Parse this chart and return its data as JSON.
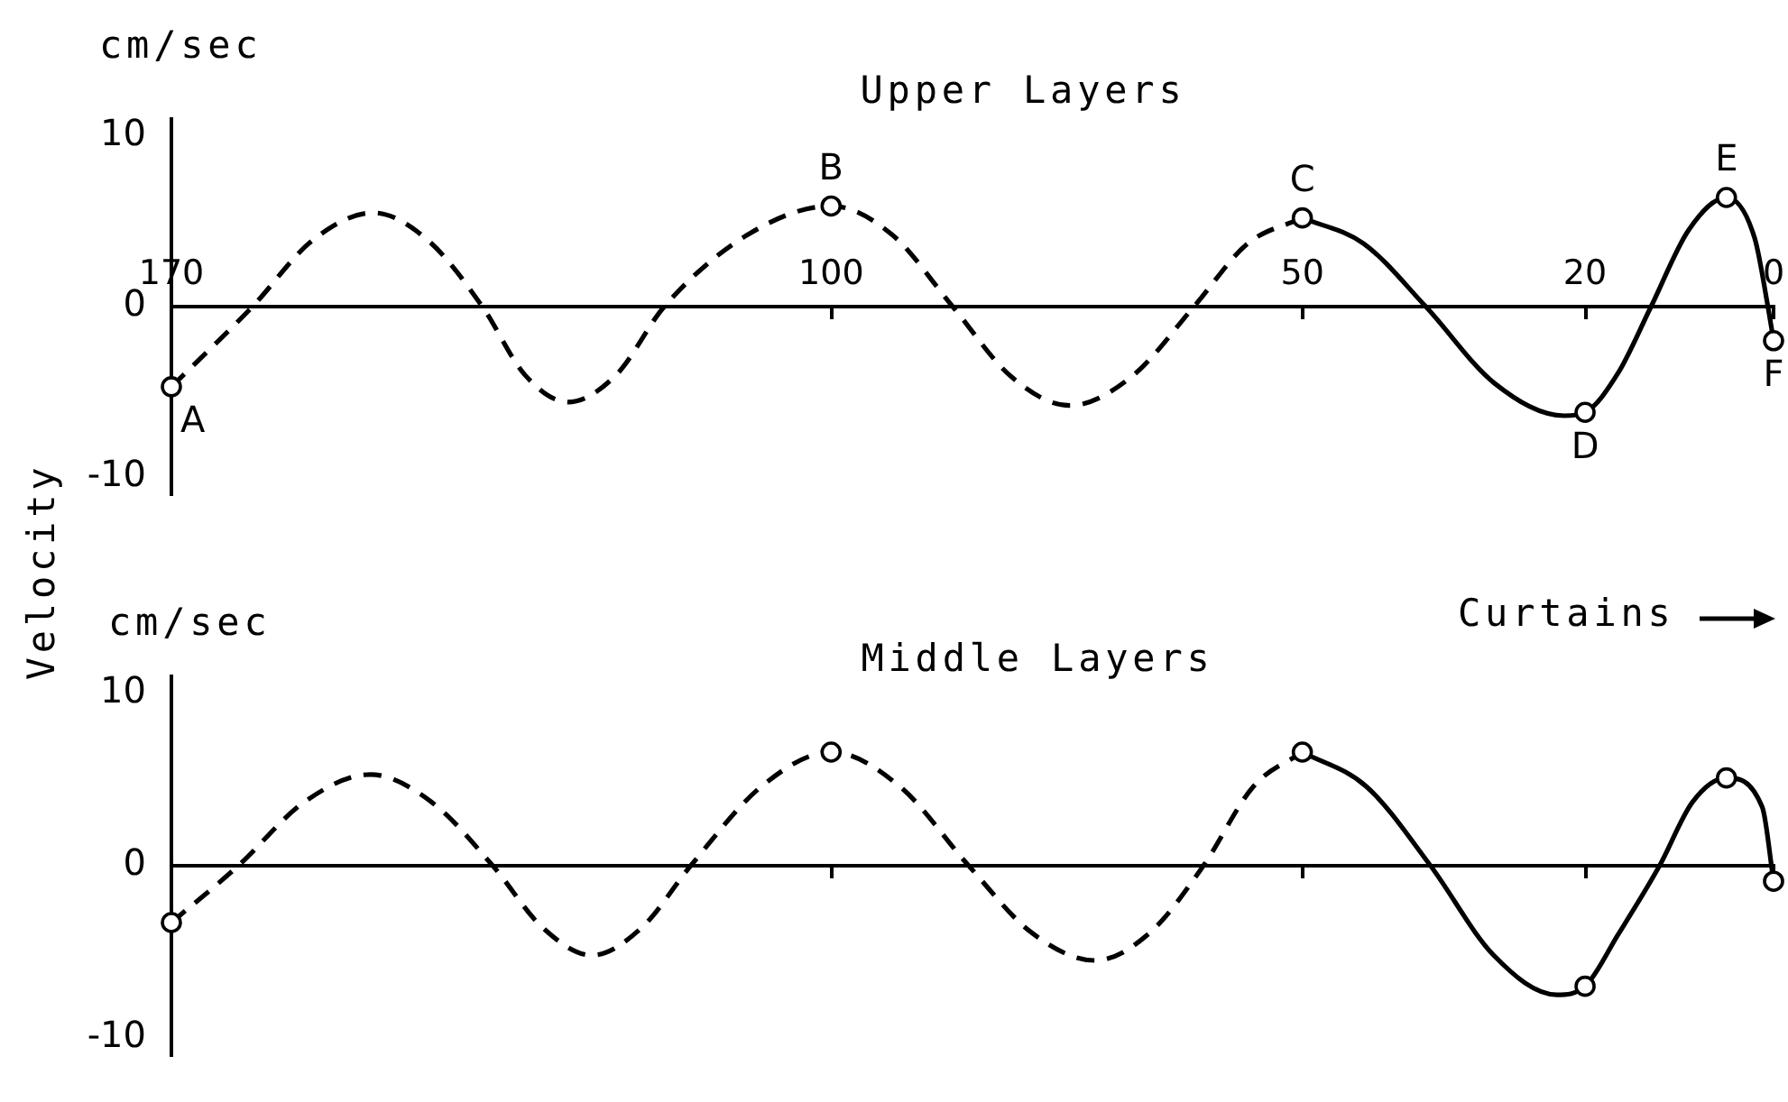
{
  "chart_data": [
    {
      "type": "line",
      "title": "Upper Layers",
      "ylabel": "cm/sec",
      "xlim": [
        170,
        0
      ],
      "xticks": [
        170,
        100,
        50,
        20,
        0
      ],
      "ylim": [
        -11,
        11
      ],
      "yticks": [
        -10,
        0,
        10
      ],
      "series": [
        {
          "type": "line",
          "line_style": "dashed",
          "marker": "none",
          "color": "#000000",
          "x": [
            170,
            161.4,
            155,
            148.6,
            142.8,
            137,
            132.5,
            127.9,
            122.8,
            117.7,
            108.9,
            100,
            93.5,
            87.1,
            80.9,
            74.7,
            68.1,
            61.5,
            55.8,
            50
          ],
          "values": [
            -4.7,
            0,
            3.9,
            5.5,
            3.9,
            0,
            -4,
            -5.6,
            -4,
            0,
            4.2,
            5.9,
            4.2,
            0,
            -4.1,
            -5.8,
            -4.1,
            0,
            3.7,
            5.2
          ]
        },
        {
          "type": "line",
          "line_style": "solid",
          "marker": "none",
          "color": "#000000",
          "x": [
            50,
            43.5,
            36.9,
            29.6,
            22.2,
            20,
            16.5,
            13,
            9,
            5,
            2,
            0.6,
            0
          ],
          "values": [
            5.2,
            3.7,
            0,
            -4.5,
            -6.4,
            -6.2,
            -3.9,
            0,
            4.5,
            6.4,
            4,
            0,
            -2
          ]
        },
        {
          "type": "scatter",
          "marker": "circle",
          "color": "#000000",
          "x": [
            170,
            100,
            50,
            20,
            5,
            0
          ],
          "values": [
            -4.7,
            5.9,
            5.2,
            -6.2,
            6.4,
            -2
          ]
        }
      ],
      "annotations": [
        "Velocity",
        {
          "text": "A",
          "x": 170,
          "y": -4.7
        },
        {
          "text": "B",
          "x": 100,
          "y": 5.9
        },
        {
          "text": "C",
          "x": 50,
          "y": 5.2
        },
        {
          "text": "D",
          "x": 20,
          "y": -6.2
        },
        {
          "text": "E",
          "x": 5,
          "y": 6.4
        },
        {
          "text": "F",
          "x": 0,
          "y": -2
        }
      ]
    },
    {
      "type": "line",
      "title": "Middle Layers",
      "ylabel": "cm/sec",
      "xlim": [
        170,
        0
      ],
      "xticks": [
        170,
        100,
        50,
        20,
        0
      ],
      "ylim": [
        -11,
        11
      ],
      "yticks": [
        -10,
        0,
        10
      ],
      "tick_labels": "y",
      "series": [
        {
          "type": "line",
          "line_style": "dashed",
          "marker": "none",
          "color": "#000000",
          "x": [
            170,
            162.9,
            155.9,
            148.9,
            142.4,
            135.9,
            130.6,
            125.4,
            120.1,
            114.9,
            107.4,
            100,
            92.7,
            85.4,
            78.7,
            72,
            66.2,
            60.5,
            55.2,
            50
          ],
          "values": [
            -3.3,
            0,
            3.7,
            5.3,
            3.7,
            0,
            -3.6,
            -5.2,
            -3.6,
            0,
            4.6,
            6.6,
            4.6,
            0,
            -3.9,
            -5.5,
            -3.9,
            0,
            4.6,
            6.6
          ]
        },
        {
          "type": "line",
          "line_style": "solid",
          "marker": "none",
          "color": "#000000",
          "x": [
            50,
            43.2,
            36.4,
            29.7,
            23,
            20,
            16.5,
            12.1,
            8.6,
            5,
            1.2,
            0
          ],
          "values": [
            6.6,
            4.6,
            0,
            -5.2,
            -7.5,
            -7,
            -4,
            0,
            3.7,
            5.1,
            3.4,
            -0.9
          ]
        },
        {
          "type": "scatter",
          "marker": "circle",
          "color": "#000000",
          "x": [
            170,
            100,
            50,
            20,
            5,
            0
          ],
          "values": [
            -3.3,
            6.6,
            6.6,
            -7,
            5.1,
            -0.9
          ]
        }
      ],
      "annotations": [
        "Curtains"
      ]
    }
  ]
}
